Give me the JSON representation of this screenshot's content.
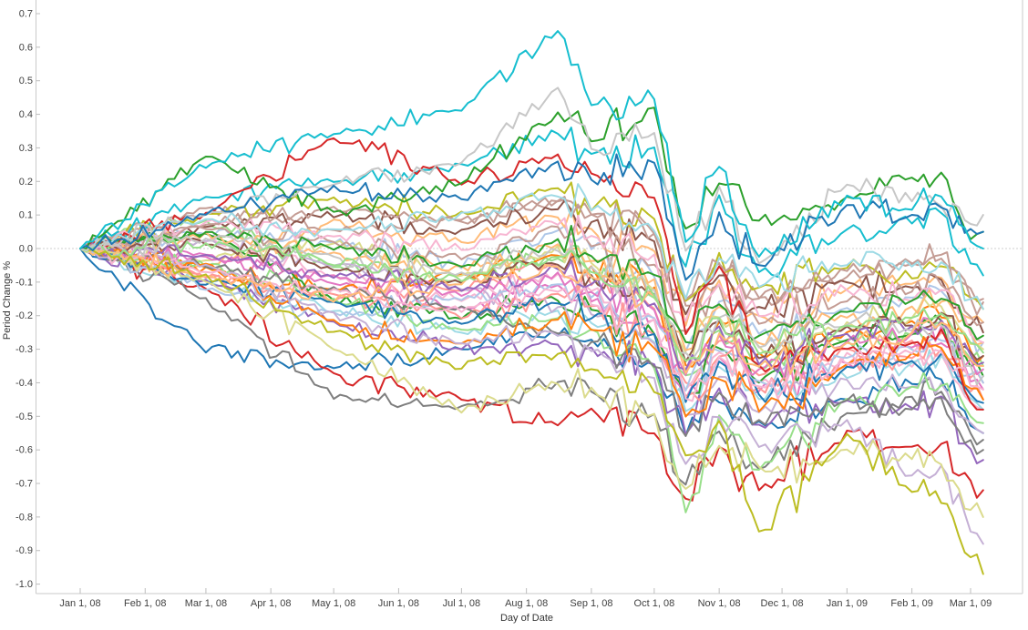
{
  "colors": {
    "background": "#ffffff",
    "axis_line": "#c9c9c9",
    "tick_mark": "#bdbdbd",
    "tick_label": "#414141",
    "axis_title": "#333333",
    "zero_line": "#9e9e9e"
  },
  "chart_data": {
    "type": "line",
    "title": "",
    "xlabel": "Day of Date",
    "ylabel": "Period Change %",
    "legend": "none",
    "grid": "off",
    "zero_reference_line": true,
    "ylim": [
      -1.03,
      0.74
    ],
    "xlim_days": [
      0,
      431
    ],
    "y_axis": {
      "tick_labels": [
        "0.7",
        "0.6",
        "0.5",
        "0.4",
        "0.3",
        "0.2",
        "0.1",
        "0.0",
        "-0.1",
        "-0.2",
        "-0.3",
        "-0.4",
        "-0.5",
        "-0.6",
        "-0.7",
        "-0.8",
        "-0.9",
        "-1.0"
      ]
    },
    "x_axis": {
      "tick_days": [
        0,
        31,
        60,
        91,
        121,
        152,
        182,
        213,
        244,
        274,
        305,
        335,
        366,
        397,
        425
      ],
      "tick_labels": [
        "Jan 1, 08",
        "Feb 1, 08",
        "Mar 1, 08",
        "Apr 1, 08",
        "May 1, 08",
        "Jun 1, 08",
        "Jul 1, 08",
        "Aug 1, 08",
        "Sep 1, 08",
        "Oct 1, 08",
        "Nov 1, 08",
        "Dec 1, 08",
        "Jan 1, 09",
        "Feb 1, 09",
        "Mar 1, 09"
      ],
      "start_label": "Jan 1, 08",
      "end_label": "Mar 1, 09"
    },
    "anchor_days": [
      0,
      60,
      121,
      182,
      228,
      244,
      274,
      289,
      305,
      324,
      366,
      397,
      411,
      425,
      431
    ],
    "render": {
      "step_days": 3,
      "noise_until": [
        230,
        350,
        1000
      ],
      "noise_amp": [
        0.03,
        0.06,
        0.042
      ],
      "line_width": 2
    },
    "series": [
      {
        "color": "#aec7e8",
        "values": [
          0,
          0.05,
          0.02,
          -0.05,
          0.05,
          0,
          -0.08,
          -0.3,
          -0.15,
          -0.25,
          -0.18,
          -0.15,
          -0.12,
          -0.25,
          -0.28
        ]
      },
      {
        "color": "#ffbb78",
        "values": [
          0,
          -0.05,
          0.08,
          0.02,
          0.1,
          0.05,
          0,
          -0.22,
          -0.1,
          -0.2,
          -0.12,
          -0.1,
          -0.08,
          -0.2,
          -0.22
        ]
      },
      {
        "color": "#98df8a",
        "values": [
          0,
          0.08,
          -0.05,
          -0.1,
          -0.02,
          -0.08,
          -0.15,
          -0.38,
          -0.25,
          -0.35,
          -0.28,
          -0.25,
          -0.22,
          -0.32,
          -0.35
        ]
      },
      {
        "color": "#ff9896",
        "values": [
          0,
          -0.08,
          -0.15,
          -0.12,
          -0.05,
          -0.1,
          -0.18,
          -0.4,
          -0.28,
          -0.38,
          -0.3,
          -0.28,
          -0.25,
          -0.38,
          -0.4
        ]
      },
      {
        "color": "#c49c94",
        "values": [
          0,
          0.12,
          0.05,
          0.08,
          0.15,
          0.1,
          0.05,
          -0.18,
          -0.05,
          -0.15,
          -0.08,
          -0.05,
          -0.02,
          -0.12,
          -0.15
        ]
      },
      {
        "color": "#e377c2",
        "values": [
          0,
          -0.02,
          -0.1,
          -0.18,
          -0.1,
          -0.15,
          -0.22,
          -0.45,
          -0.32,
          -0.42,
          -0.35,
          -0.3,
          -0.28,
          -0.4,
          -0.42
        ]
      },
      {
        "color": "#f7b6d2",
        "values": [
          0,
          0.03,
          -0.08,
          -0.15,
          -0.08,
          -0.12,
          -0.2,
          -0.42,
          -0.3,
          -0.4,
          -0.32,
          -0.35,
          -0.32,
          -0.45,
          -0.48
        ]
      },
      {
        "color": "#9edae5",
        "values": [
          0,
          -0.1,
          -0.18,
          -0.25,
          -0.18,
          -0.22,
          -0.28,
          -0.48,
          -0.35,
          -0.45,
          -0.38,
          -0.35,
          -0.32,
          -0.45,
          -0.48
        ]
      },
      {
        "color": "#8c564b",
        "values": [
          0,
          0.06,
          0.1,
          0.05,
          0.12,
          0.08,
          0.02,
          -0.2,
          -0.08,
          -0.18,
          -0.1,
          -0.12,
          -0.1,
          -0.22,
          -0.25
        ]
      },
      {
        "color": "#1f77b4",
        "values": [
          0,
          -0.3,
          -0.36,
          -0.3,
          -0.25,
          -0.28,
          -0.35,
          -0.55,
          -0.45,
          -0.52,
          -0.45,
          -0.4,
          -0.38,
          -0.52,
          -0.55
        ]
      },
      {
        "color": "#ff7f0e",
        "values": [
          0,
          -0.06,
          -0.12,
          -0.08,
          -0.02,
          -0.06,
          -0.12,
          -0.35,
          -0.22,
          -0.32,
          -0.25,
          -0.22,
          -0.2,
          -0.3,
          -0.32
        ]
      },
      {
        "color": "#2ca02c",
        "values": [
          0,
          0.05,
          -0.15,
          -0.2,
          -0.15,
          -0.18,
          -0.25,
          -0.45,
          -0.3,
          -0.4,
          -0.28,
          -0.25,
          -0.22,
          -0.35,
          -0.38
        ]
      },
      {
        "color": "#d62728",
        "values": [
          0,
          -0.12,
          -0.38,
          -0.45,
          -0.52,
          -0.48,
          -0.55,
          -0.75,
          -0.6,
          -0.72,
          -0.55,
          -0.6,
          -0.58,
          -0.7,
          -0.72
        ]
      },
      {
        "color": "#9467bd",
        "values": [
          0,
          -0.1,
          -0.22,
          -0.3,
          -0.28,
          -0.3,
          -0.35,
          -0.55,
          -0.42,
          -0.52,
          -0.45,
          -0.48,
          -0.45,
          -0.6,
          -0.63
        ]
      },
      {
        "color": "#7f7f7f",
        "values": [
          0,
          -0.15,
          -0.44,
          -0.47,
          -0.4,
          -0.42,
          -0.5,
          -0.7,
          -0.55,
          -0.65,
          -0.5,
          -0.45,
          -0.42,
          -0.55,
          -0.57
        ]
      },
      {
        "color": "#c5b0d5",
        "values": [
          0,
          0.02,
          -0.05,
          -0.12,
          -0.18,
          -0.2,
          -0.28,
          -0.5,
          -0.38,
          -0.48,
          -0.4,
          -0.42,
          -0.4,
          -0.52,
          -0.55
        ]
      },
      {
        "color": "#dbdb8d",
        "values": [
          0,
          -0.04,
          0.02,
          -0.08,
          0,
          -0.05,
          -0.12,
          -0.32,
          -0.2,
          -0.3,
          -0.22,
          -0.2,
          -0.18,
          -0.28,
          -0.3
        ]
      },
      {
        "color": "#bcbd22",
        "values": [
          0,
          0.1,
          0.15,
          0.1,
          0.18,
          0.12,
          0.08,
          -0.15,
          -0.02,
          -0.12,
          -0.05,
          -0.08,
          -0.05,
          -0.15,
          -0.18
        ]
      },
      {
        "color": "#17becf",
        "values": [
          0,
          0.15,
          0.2,
          0.25,
          0.35,
          0.28,
          0.3,
          -0.05,
          0.15,
          -0.08,
          0.05,
          0.08,
          0.1,
          -0.05,
          -0.08
        ]
      },
      {
        "color": "#aec7e8",
        "values": [
          0,
          -0.12,
          -0.2,
          -0.15,
          -0.1,
          -0.14,
          -0.2,
          -0.42,
          -0.3,
          -0.4,
          -0.32,
          -0.3,
          -0.28,
          -0.38,
          -0.4
        ]
      },
      {
        "color": "#ffbb78",
        "values": [
          0,
          0.04,
          -0.02,
          -0.06,
          0.02,
          -0.03,
          -0.1,
          -0.3,
          -0.18,
          -0.28,
          -0.2,
          -0.18,
          -0.15,
          -0.25,
          -0.28
        ]
      },
      {
        "color": "#98df8a",
        "values": [
          0,
          -0.05,
          -0.15,
          -0.25,
          -0.2,
          -0.25,
          -0.35,
          -0.78,
          -0.5,
          -0.65,
          -0.45,
          -0.42,
          -0.4,
          -0.5,
          -0.52
        ]
      },
      {
        "color": "#ff9896",
        "values": [
          0,
          -0.08,
          -0.14,
          -0.2,
          -0.14,
          -0.18,
          -0.25,
          -0.45,
          -0.32,
          -0.42,
          -0.35,
          -0.32,
          -0.3,
          -0.42,
          -0.45
        ]
      },
      {
        "color": "#c49c94",
        "values": [
          0,
          0.06,
          0.02,
          -0.03,
          0.06,
          0.01,
          -0.05,
          -0.25,
          -0.12,
          -0.22,
          -0.15,
          -0.12,
          -0.1,
          -0.2,
          -0.22
        ]
      },
      {
        "color": "#e377c2",
        "values": [
          0,
          -0.03,
          -0.08,
          -0.14,
          -0.08,
          -0.12,
          -0.18,
          -0.38,
          -0.26,
          -0.36,
          -0.28,
          -0.26,
          -0.24,
          -0.34,
          -0.36
        ]
      },
      {
        "color": "#f7b6d2",
        "values": [
          0,
          0.08,
          0.04,
          0,
          0.08,
          0.03,
          -0.02,
          -0.22,
          -0.1,
          -0.2,
          -0.12,
          -0.15,
          -0.12,
          -0.25,
          -0.28
        ]
      },
      {
        "color": "#7f7f7f",
        "values": [
          0,
          -0.05,
          -0.12,
          -0.18,
          -0.25,
          -0.28,
          -0.35,
          -0.55,
          -0.42,
          -0.52,
          -0.45,
          -0.48,
          -0.45,
          -0.58,
          -0.6
        ]
      },
      {
        "color": "#8c564b",
        "values": [
          0,
          0.02,
          -0.06,
          -0.1,
          -0.04,
          -0.08,
          -0.14,
          -0.34,
          -0.22,
          -0.32,
          -0.24,
          -0.22,
          -0.2,
          -0.3,
          -0.32
        ]
      },
      {
        "color": "#1f77b4",
        "values": [
          0,
          -0.1,
          -0.16,
          -0.22,
          -0.16,
          -0.2,
          -0.26,
          -0.46,
          -0.34,
          -0.44,
          -0.36,
          -0.34,
          -0.32,
          -0.44,
          -0.46
        ]
      },
      {
        "color": "#ff7f0e",
        "values": [
          0,
          -0.05,
          -0.22,
          -0.28,
          -0.22,
          -0.25,
          -0.3,
          -0.5,
          -0.38,
          -0.48,
          -0.35,
          -0.32,
          -0.3,
          -0.42,
          -0.45
        ]
      },
      {
        "color": "#2ca02c",
        "values": [
          0,
          0.05,
          0,
          -0.05,
          0.03,
          -0.02,
          -0.08,
          -0.28,
          -0.16,
          -0.26,
          -0.18,
          -0.16,
          -0.14,
          -0.24,
          -0.26
        ]
      },
      {
        "color": "#d62728",
        "values": [
          0,
          0.1,
          0.33,
          0.2,
          0.28,
          0.22,
          0.15,
          -0.25,
          -0.05,
          -0.35,
          -0.3,
          -0.28,
          -0.25,
          -0.45,
          -0.48
        ]
      },
      {
        "color": "#9467bd",
        "values": [
          0,
          -0.02,
          -0.08,
          -0.12,
          -0.06,
          -0.1,
          -0.16,
          -0.36,
          -0.24,
          -0.34,
          -0.26,
          -0.24,
          -0.22,
          -0.32,
          -0.34
        ]
      },
      {
        "color": "#c5b0d5",
        "values": [
          0,
          -0.05,
          -0.2,
          -0.28,
          -0.25,
          -0.3,
          -0.38,
          -0.65,
          -0.5,
          -0.6,
          -0.52,
          -0.68,
          -0.65,
          -0.85,
          -0.88
        ]
      },
      {
        "color": "#c49c94",
        "values": [
          0,
          0.07,
          0.12,
          0.08,
          0.14,
          0.1,
          0.04,
          -0.16,
          -0.04,
          -0.14,
          -0.06,
          -0.04,
          -0.02,
          -0.14,
          -0.16
        ]
      },
      {
        "color": "#f7b6d2",
        "values": [
          0,
          -0.07,
          -0.13,
          -0.18,
          -0.12,
          -0.16,
          -0.22,
          -0.44,
          -0.32,
          -0.42,
          -0.34,
          -0.32,
          -0.3,
          -0.4,
          -0.42
        ]
      },
      {
        "color": "#c7c7c7",
        "values": [
          0,
          0.03,
          -0.03,
          -0.08,
          0,
          -0.05,
          -0.12,
          -0.32,
          -0.2,
          -0.3,
          -0.22,
          -0.25,
          -0.22,
          -0.35,
          -0.38
        ]
      },
      {
        "color": "#dbdb8d",
        "values": [
          0,
          -0.1,
          -0.3,
          -0.48,
          -0.4,
          -0.42,
          -0.5,
          -0.72,
          -0.58,
          -0.66,
          -0.6,
          -0.62,
          -0.65,
          -0.78,
          -0.8
        ]
      },
      {
        "color": "#9edae5",
        "values": [
          0,
          0.09,
          0.05,
          0.1,
          0.16,
          0.12,
          0.06,
          -0.14,
          -0.02,
          -0.12,
          -0.04,
          -0.06,
          -0.04,
          -0.16,
          -0.18
        ]
      },
      {
        "color": "#ffbb78",
        "values": [
          0,
          -0.09,
          -0.15,
          -0.1,
          -0.05,
          -0.09,
          -0.15,
          -0.38,
          -0.25,
          -0.35,
          -0.28,
          -0.25,
          -0.22,
          -0.33,
          -0.35
        ]
      },
      {
        "color": "#98df8a",
        "values": [
          0,
          0.01,
          -0.04,
          -0.09,
          -0.03,
          -0.07,
          -0.13,
          -0.33,
          -0.21,
          -0.31,
          -0.23,
          -0.21,
          -0.19,
          -0.29,
          -0.31
        ]
      },
      {
        "color": "#bcbd22",
        "values": [
          0,
          -0.08,
          -0.25,
          -0.35,
          -0.32,
          -0.35,
          -0.42,
          -0.62,
          -0.52,
          -0.85,
          -0.55,
          -0.72,
          -0.75,
          -0.92,
          -0.97
        ]
      },
      {
        "color": "#2ca02c",
        "values": [
          0,
          0.28,
          0.1,
          0.2,
          0.4,
          0.32,
          0.42,
          0.05,
          0.2,
          0.08,
          0.15,
          0.22,
          0.22,
          0.03,
          0.05
        ]
      },
      {
        "color": "#c7c7c7",
        "values": [
          0,
          0.1,
          0.2,
          0.25,
          0.47,
          0.3,
          0.35,
          0,
          0.18,
          -0.05,
          0.2,
          0.15,
          0.12,
          0.08,
          0.1
        ]
      },
      {
        "color": "#1f77b4",
        "values": [
          0,
          0.1,
          0.18,
          0.15,
          0.25,
          0.2,
          0.25,
          -0.1,
          0.1,
          -0.05,
          0.12,
          0.1,
          0.12,
          0.05,
          0.05
        ]
      },
      {
        "color": "#17becf",
        "values": [
          0,
          0.25,
          0.34,
          0.42,
          0.65,
          0.42,
          0.45,
          0.02,
          0.25,
          -0.02,
          0.15,
          0.12,
          0.15,
          0.02,
          0
        ]
      }
    ]
  }
}
